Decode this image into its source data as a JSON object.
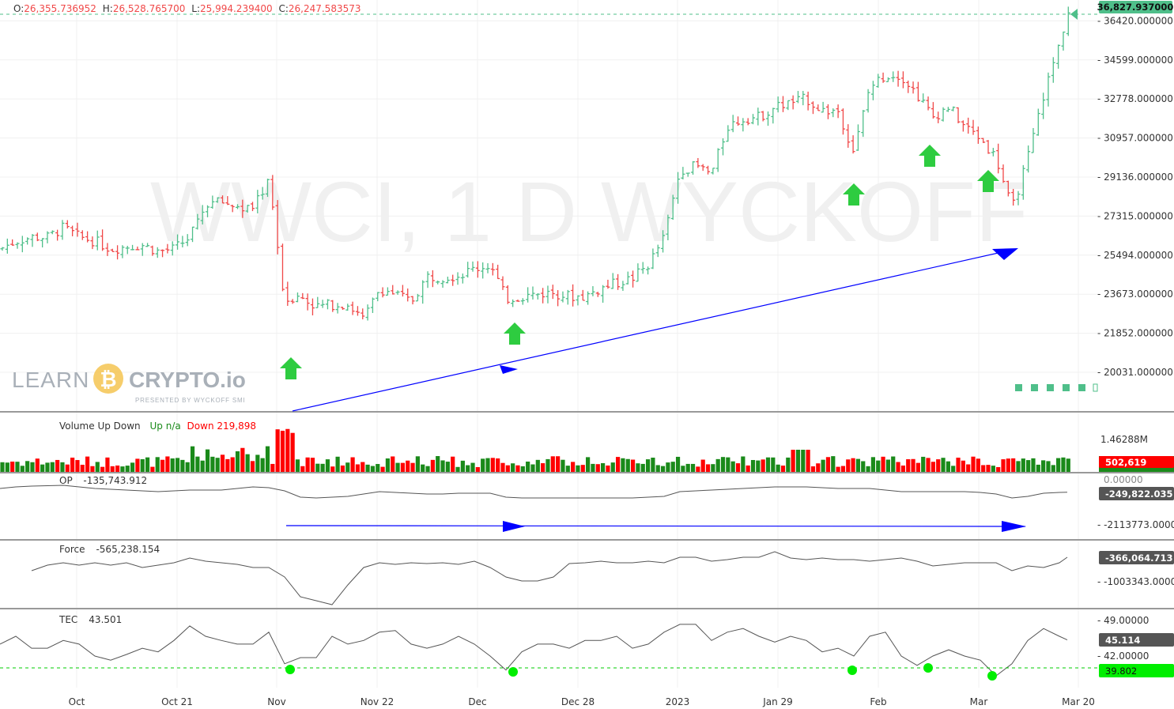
{
  "header": {
    "ohlc": {
      "o_label": "O:",
      "o": "26,355.736952",
      "h_label": "H:",
      "h": "26,528.765700",
      "l_label": "L:",
      "l": "25,994.239400",
      "c_label": "C:",
      "c": "26,247.583573"
    }
  },
  "watermark": "WWCI, 1 D WYCKOFF",
  "logo": {
    "left": "LEARN",
    "right": "CRYPTO.io",
    "sub": "PRESENTED BY WYCKOFF SMI",
    "coin_color": "#f5c451"
  },
  "colors": {
    "up": "#4fbf8a",
    "down": "#f04848",
    "vol_up": "#1a8a1a",
    "vol_down": "#ff0000",
    "arrow": "#2ecc40",
    "trend": "#0000ff",
    "dot": "#00ee00"
  },
  "chart_data": [
    {
      "type": "ohlc",
      "name": "price",
      "x_ticks": [
        "Oct",
        "Oct 21",
        "Nov",
        "Nov 22",
        "Dec",
        "Dec 28",
        "2023",
        "Jan 29",
        "Feb",
        "Mar",
        "Mar 20"
      ],
      "y_ticks": [
        "36420.000000",
        "34599.000000",
        "32778.000000",
        "30957.000000",
        "29136.000000",
        "27315.000000",
        "25494.000000",
        "23673.000000",
        "21852.000000",
        "20031.000000"
      ],
      "ylim": [
        19500,
        37300
      ],
      "last_price": "36,827.937000",
      "closes_sampled": [
        25781,
        26150,
        26334,
        26334,
        26776,
        26334,
        26150,
        25781,
        25892,
        25966,
        25670,
        25781,
        26334,
        27882,
        27993,
        27735,
        27624,
        29099,
        23385,
        23570,
        23090,
        23201,
        23201,
        22464,
        23938,
        23680,
        23311,
        24491,
        24491,
        24565,
        24860,
        25044,
        23459,
        23570,
        23680,
        23754,
        23570,
        23570,
        23938,
        24196,
        24417,
        25044,
        26334,
        29467,
        29651,
        29283,
        31494,
        31863,
        31937,
        32416,
        32600,
        32785,
        32232,
        32232,
        30315,
        33338,
        33891,
        33891,
        32969,
        31937,
        32416,
        31494,
        30942,
        30020,
        27624,
        30020,
        32969,
        35365,
        36828
      ]
    },
    {
      "type": "bar",
      "name": "Volume Up Down",
      "legend": {
        "title": "Volume Up Down",
        "up": "Up n/a",
        "down": "Down 219,898"
      },
      "y_ticks": [
        "1.46288M"
      ],
      "last_labels": {
        "down": "502,619"
      }
    },
    {
      "type": "line",
      "name": "OP",
      "legend": {
        "title": "OP",
        "value": "-135,743.912"
      },
      "y_ticks": [
        "0.00000",
        "-2113773.00000"
      ],
      "last_label": "-249,822.035",
      "values_sampled": [
        -44000,
        44000,
        88000,
        110000,
        132000,
        44000,
        -44000,
        -88000,
        -132000,
        -176000,
        -220000,
        -176000,
        -132000,
        -132000,
        -132000,
        -44000,
        44000,
        0,
        -176000,
        -528000,
        -573000,
        -528000,
        -484000,
        -352000,
        -220000,
        -264000,
        -308000,
        -352000,
        -352000,
        -308000,
        -308000,
        -308000,
        -528000,
        -573000,
        -573000,
        -573000,
        -573000,
        -573000,
        -573000,
        -573000,
        -573000,
        -528000,
        -484000,
        -220000,
        -176000,
        -132000,
        -88000,
        -44000,
        0,
        44000,
        44000,
        44000,
        0,
        -44000,
        -44000,
        -44000,
        -132000,
        -220000,
        -220000,
        -220000,
        -220000,
        -220000,
        -264000,
        -352000,
        -573000,
        -484000,
        -308000,
        -264000,
        -249822
      ]
    },
    {
      "type": "line",
      "name": "Force",
      "legend": {
        "title": "Force",
        "value": "-565,238.154"
      },
      "y_ticks": [
        "-1003343.00000"
      ],
      "last_label": "-366,064.713",
      "values_sampled": [
        null,
        null,
        -727000,
        -578000,
        -515000,
        -578000,
        -515000,
        -578000,
        -515000,
        -642000,
        -578000,
        -515000,
        -387000,
        -472000,
        -515000,
        -557000,
        -642000,
        -642000,
        -897000,
        -1428000,
        -1534000,
        -1640000,
        -1109000,
        -642000,
        -515000,
        -557000,
        -515000,
        -536000,
        -515000,
        -557000,
        -472000,
        -642000,
        -897000,
        -1003000,
        -1003000,
        -897000,
        -536000,
        -515000,
        -472000,
        -515000,
        -515000,
        -472000,
        -515000,
        -366000,
        -366000,
        -472000,
        -430000,
        -366000,
        -366000,
        -217000,
        -387000,
        -430000,
        -387000,
        -430000,
        -430000,
        -472000,
        -430000,
        -387000,
        -472000,
        -600000,
        -557000,
        -515000,
        -515000,
        -515000,
        -727000,
        -600000,
        -642000,
        -515000,
        -366065
      ]
    },
    {
      "type": "line",
      "name": "TEC",
      "legend": {
        "title": "TEC",
        "value": "43.501"
      },
      "y_ticks": [
        "49.00000",
        "42.00000"
      ],
      "last_label": "45.114",
      "threshold_label": "39.802",
      "values_sampled": [
        44.3,
        45.8,
        43.5,
        43.5,
        45.0,
        44.3,
        42.0,
        41.2,
        42.3,
        43.5,
        42.8,
        45.0,
        47.8,
        45.8,
        45.0,
        44.3,
        44.3,
        46.6,
        40.5,
        41.7,
        41.7,
        45.8,
        44.3,
        45.0,
        46.6,
        46.9,
        44.3,
        43.5,
        44.3,
        45.8,
        44.3,
        42.0,
        39.3,
        42.8,
        44.3,
        44.3,
        43.5,
        45.0,
        45.0,
        45.8,
        43.5,
        44.3,
        46.6,
        48.1,
        48.1,
        45.0,
        46.6,
        47.3,
        45.8,
        44.7,
        45.8,
        45.0,
        42.8,
        43.5,
        42.0,
        45.8,
        46.6,
        42.0,
        40.2,
        42.0,
        43.2,
        42.0,
        41.2,
        38.2,
        40.5,
        45.0,
        47.3,
        45.8,
        45.1
      ]
    }
  ]
}
